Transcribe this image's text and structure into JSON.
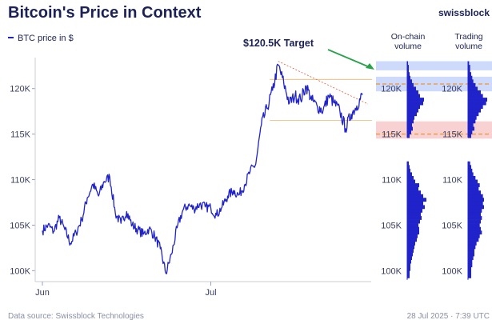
{
  "header": {
    "title": "Bitcoin's Price in Context",
    "brand": "swissblock"
  },
  "legend": {
    "series_label": "BTC price in $"
  },
  "footer": {
    "source": "Data source: Swissblock Technologies",
    "timestamp": "28 Jul 2025 · 7:39 UTC"
  },
  "colors": {
    "price_line": "#1f23c9",
    "volume_bars": "#1f23c9",
    "upper_band": "#c6d3fb",
    "lower_band": "#f7caca",
    "target_line": "#f0952d",
    "resistance_line": "#e05a3a",
    "arrow": "#2aa14b",
    "title": "#1c2255"
  },
  "chart_data": [
    {
      "name": "price",
      "type": "line",
      "title": "Bitcoin's Price in Context",
      "series": [
        {
          "name": "BTC price in $"
        }
      ],
      "ylim": [
        98800,
        123400
      ],
      "yticks": [
        100000,
        105000,
        110000,
        115000,
        120000
      ],
      "ytick_labels": [
        "100K",
        "105K",
        "110K",
        "115K",
        "120K"
      ],
      "xtick_labels": [
        "Jun",
        "Jul"
      ],
      "xtick_day_index": [
        0,
        30
      ],
      "x_days": 58,
      "anchors": [
        [
          0,
          104400
        ],
        [
          1,
          105000
        ],
        [
          2,
          104300
        ],
        [
          3,
          105800
        ],
        [
          4,
          104500
        ],
        [
          5,
          103000
        ],
        [
          6,
          104200
        ],
        [
          7,
          105600
        ],
        [
          8,
          108000
        ],
        [
          9,
          109500
        ],
        [
          10,
          108200
        ],
        [
          11,
          109800
        ],
        [
          12,
          110300
        ],
        [
          13,
          106300
        ],
        [
          14,
          105200
        ],
        [
          15,
          106500
        ],
        [
          16,
          105000
        ],
        [
          17,
          104500
        ],
        [
          18,
          104000
        ],
        [
          19,
          104600
        ],
        [
          20,
          103800
        ],
        [
          21,
          102400
        ],
        [
          22,
          99700
        ],
        [
          23,
          101800
        ],
        [
          24,
          104700
        ],
        [
          25,
          106600
        ],
        [
          26,
          107200
        ],
        [
          27,
          106800
        ],
        [
          28,
          107300
        ],
        [
          29,
          107000
        ],
        [
          30,
          106900
        ],
        [
          31,
          106100
        ],
        [
          32,
          107000
        ],
        [
          33,
          108200
        ],
        [
          34,
          108800
        ],
        [
          35,
          108300
        ],
        [
          36,
          109400
        ],
        [
          37,
          110900
        ],
        [
          38,
          111700
        ],
        [
          39,
          116000
        ],
        [
          40,
          117800
        ],
        [
          41,
          119800
        ],
        [
          42,
          122600
        ],
        [
          43,
          120600
        ],
        [
          44,
          118400
        ],
        [
          45,
          119200
        ],
        [
          46,
          118800
        ],
        [
          47,
          120300
        ],
        [
          48,
          118700
        ],
        [
          49,
          118000
        ],
        [
          50,
          117600
        ],
        [
          51,
          119200
        ],
        [
          52,
          118400
        ],
        [
          53,
          117500
        ],
        [
          54,
          115600
        ],
        [
          55,
          117200
        ],
        [
          56,
          118100
        ],
        [
          57,
          119300
        ]
      ],
      "annotations": {
        "target_label": "$120.5K Target",
        "target_value": 120500,
        "support_line": 116500,
        "range_top_line": 121000,
        "resistance_trendline": [
          [
            42,
            123000
          ],
          [
            58,
            118300
          ]
        ]
      },
      "bands": [
        {
          "name": "upper",
          "from": 119700,
          "to": 121300
        },
        {
          "name": "lower",
          "from": 114500,
          "to": 116400
        }
      ]
    },
    {
      "name": "on_chain_volume_profile",
      "type": "bar",
      "title": "On-chain volume",
      "tick_labels": [
        "100K",
        "105K",
        "110K",
        "115K",
        "120K"
      ],
      "gaps": [
        [
          98800,
          98800
        ],
        [
          112000,
          114800
        ]
      ],
      "price_levels": [
        99400,
        99800,
        100200,
        100600,
        101000,
        101400,
        101800,
        102200,
        102600,
        103000,
        103400,
        103800,
        104200,
        104600,
        105000,
        105400,
        105800,
        106200,
        106600,
        107000,
        107400,
        107800,
        108200,
        108600,
        109000,
        109400,
        109800,
        110200,
        110600,
        111000,
        111400,
        111800,
        114800,
        115200,
        115600,
        116000,
        116400,
        116800,
        117200,
        117600,
        118000,
        118400,
        118800,
        119200,
        119600,
        120000,
        120400,
        120800,
        121200,
        121600,
        122000,
        122400,
        122800
      ],
      "values": [
        3,
        3,
        4,
        4,
        5,
        6,
        7,
        8,
        9,
        10,
        12,
        13,
        15,
        15,
        14,
        16,
        18,
        17,
        19,
        22,
        20,
        24,
        20,
        17,
        14,
        15,
        10,
        8,
        6,
        4,
        3,
        2,
        3,
        5,
        7,
        6,
        8,
        9,
        12,
        14,
        16,
        20,
        21,
        16,
        14,
        11,
        8,
        6,
        4,
        3,
        2,
        2,
        1
      ]
    },
    {
      "name": "trading_volume_profile",
      "type": "bar",
      "title": "Trading volume",
      "tick_labels": [
        "100K",
        "105K",
        "110K",
        "115K",
        "120K"
      ],
      "price_levels": [
        99400,
        99800,
        100200,
        100600,
        101000,
        101400,
        101800,
        102200,
        102600,
        103000,
        103400,
        103800,
        104200,
        104600,
        105000,
        105400,
        105800,
        106200,
        106600,
        107000,
        107400,
        107800,
        108200,
        108600,
        109000,
        109400,
        109800,
        110200,
        110600,
        111000,
        111400,
        111800,
        114800,
        115200,
        115600,
        116000,
        116400,
        116800,
        117200,
        117600,
        118000,
        118400,
        118800,
        119200,
        119600,
        120000,
        120400,
        120800,
        121200,
        121600,
        122000,
        122400,
        122800
      ],
      "values": [
        3,
        3,
        3,
        4,
        4,
        5,
        6,
        6,
        7,
        8,
        10,
        11,
        13,
        12,
        11,
        12,
        13,
        12,
        13,
        15,
        14,
        15,
        14,
        12,
        10,
        11,
        9,
        7,
        5,
        4,
        3,
        2,
        3,
        4,
        6,
        5,
        7,
        8,
        10,
        12,
        14,
        17,
        18,
        14,
        12,
        9,
        7,
        5,
        4,
        3,
        2,
        2,
        1
      ]
    }
  ]
}
